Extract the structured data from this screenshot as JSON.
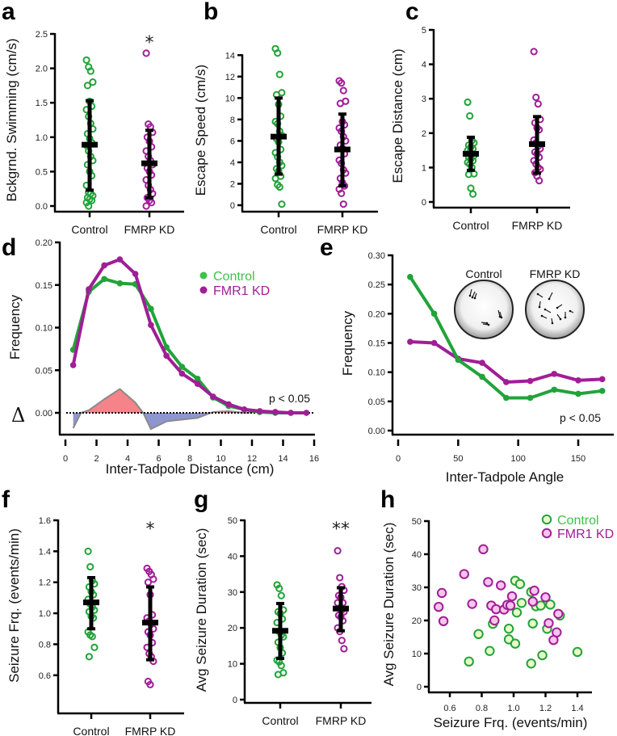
{
  "figure": {
    "colors": {
      "control": "#22a33a",
      "control_light": "#3ec24a",
      "fmrp": "#a01e96",
      "control_fill": "#eafbc8",
      "fmrp_fill": "#f6c4ec",
      "delta_pos": "#f4838a",
      "delta_neg": "#8e96cf",
      "delta_edge": "#8a8a8a"
    }
  },
  "chart_data": [
    {
      "panel": "a",
      "type": "scatter",
      "ylabel": "Bckgrnd. Swimming (cm/s)",
      "categories": [
        "Control",
        "FMRP KD"
      ],
      "yticks": [
        "0.0",
        "0.5",
        "1.0",
        "1.5",
        "2.0",
        "2.5"
      ],
      "ylim": [
        0,
        2.5
      ],
      "significance": [
        "",
        "*"
      ],
      "series": [
        {
          "name": "Control",
          "values": [
            2.12,
            2.02,
            1.96,
            1.8,
            1.75,
            1.52,
            1.45,
            1.4,
            1.3,
            1.2,
            1.12,
            1.05,
            0.98,
            0.92,
            0.88,
            0.8,
            0.72,
            0.66,
            0.6,
            0.5,
            0.44,
            0.3,
            0.2,
            0.18,
            0.15,
            0.12,
            0.1,
            0.08,
            0.05,
            0.0
          ],
          "mean": 0.89,
          "sd_low": 0.23,
          "sd_high": 1.53
        },
        {
          "name": "FMRP KD",
          "values": [
            2.22,
            1.19,
            1.15,
            1.07,
            1.0,
            0.94,
            0.86,
            0.8,
            0.72,
            0.66,
            0.6,
            0.55,
            0.5,
            0.45,
            0.38,
            0.3,
            0.24,
            0.18,
            0.12,
            0.08,
            0.05,
            0.0
          ],
          "mean": 0.62,
          "sd_low": 0.12,
          "sd_high": 1.1
        }
      ]
    },
    {
      "panel": "b",
      "type": "scatter",
      "ylabel": "Escape Speed (cm/s)",
      "categories": [
        "Control",
        "FMRP KD"
      ],
      "yticks": [
        "0",
        "2",
        "4",
        "6",
        "8",
        "10",
        "12",
        "14"
      ],
      "ylim": [
        0,
        15
      ],
      "significance": [
        "",
        ""
      ],
      "series": [
        {
          "name": "Control",
          "values": [
            14.6,
            14.2,
            12.2,
            10.5,
            10.3,
            9.4,
            8.3,
            7.8,
            7.6,
            6.9,
            6.5,
            6.2,
            5.9,
            5.2,
            4.9,
            4.5,
            4.0,
            3.7,
            3.4,
            3.2,
            2.7,
            2.5,
            1.9,
            1.7,
            0.1
          ],
          "mean": 6.4,
          "sd_low": 2.9,
          "sd_high": 10.0
        },
        {
          "name": "FMRP KD",
          "values": [
            11.6,
            11.4,
            10.7,
            9.7,
            9.5,
            7.8,
            7.5,
            7.2,
            6.9,
            6.4,
            6.0,
            5.6,
            5.3,
            4.8,
            4.2,
            3.9,
            3.3,
            3.0,
            2.5,
            2.1,
            1.8,
            1.5,
            1.1,
            0.1
          ],
          "mean": 5.2,
          "sd_low": 1.8,
          "sd_high": 8.5
        }
      ]
    },
    {
      "panel": "c",
      "type": "scatter",
      "ylabel": "Escape Distance (cm)",
      "categories": [
        "Control",
        "FMRP KD"
      ],
      "yticks": [
        "0",
        "1",
        "2",
        "3",
        "4",
        "5"
      ],
      "ylim": [
        0,
        5
      ],
      "significance": [
        "",
        ""
      ],
      "series": [
        {
          "name": "Control",
          "values": [
            2.9,
            2.5,
            1.78,
            1.72,
            1.65,
            1.6,
            1.55,
            1.5,
            1.45,
            1.4,
            1.35,
            1.3,
            1.25,
            1.2,
            1.15,
            1.1,
            1.0,
            0.82,
            0.8,
            0.4,
            0.23
          ],
          "mean": 1.4,
          "sd_low": 0.92,
          "sd_high": 1.88
        },
        {
          "name": "FMRP KD",
          "values": [
            4.37,
            3.04,
            2.85,
            2.4,
            2.3,
            2.15,
            2.1,
            1.8,
            1.72,
            1.62,
            1.55,
            1.45,
            1.4,
            1.3,
            1.2,
            1.1,
            1.0,
            0.95,
            0.85,
            0.75,
            0.62
          ],
          "mean": 1.68,
          "sd_low": 0.84,
          "sd_high": 2.48
        }
      ]
    },
    {
      "panel": "d",
      "type": "line",
      "xlabel": "Inter-Tadpole Distance (cm)",
      "ylabel": "Frequency",
      "xticks": [
        "0",
        "2",
        "4",
        "6",
        "8",
        "10",
        "12",
        "14",
        "16"
      ],
      "yticks": [
        "0.00",
        "0.05",
        "0.10",
        "0.15",
        "0.20"
      ],
      "xlim": [
        0,
        16
      ],
      "ylim": [
        -0.025,
        0.2
      ],
      "delta_label": "Δ",
      "annotation": "p < 0.05",
      "legend": [
        "Control",
        "FMR1 KD"
      ],
      "legend_position": "top-right",
      "x": [
        0.5,
        1.5,
        2.5,
        3.5,
        4.5,
        5.5,
        6.5,
        7.5,
        8.5,
        9.5,
        10.5,
        11.5,
        12.5,
        13.5,
        14.5,
        15.5
      ],
      "series": [
        {
          "name": "Control",
          "values": [
            0.074,
            0.142,
            0.157,
            0.152,
            0.151,
            0.122,
            0.077,
            0.054,
            0.04,
            0.018,
            0.008,
            0.004,
            0.001,
            0.0,
            0.0,
            0.0
          ]
        },
        {
          "name": "FMR1 KD",
          "values": [
            0.056,
            0.145,
            0.173,
            0.18,
            0.163,
            0.103,
            0.067,
            0.046,
            0.034,
            0.019,
            0.01,
            0.004,
            0.002,
            0.001,
            0.0,
            0.0
          ]
        },
        {
          "name": "Delta",
          "x": [
            0.5,
            1.0,
            1.5,
            2.5,
            3.5,
            4.5,
            5.0,
            5.5,
            6.5,
            7.5,
            8.5,
            9.5,
            10.5,
            11.5,
            12.5,
            13.5,
            14.5,
            15.5
          ],
          "values": [
            -0.018,
            0.0,
            0.003,
            0.016,
            0.028,
            0.012,
            0.0,
            -0.019,
            -0.01,
            -0.008,
            -0.006,
            0.001,
            0.002,
            0.0,
            0.001,
            0.001,
            0.0,
            0.0
          ]
        }
      ]
    },
    {
      "panel": "e",
      "type": "line",
      "xlabel": "Inter-Tadpole Angle",
      "ylabel": "Frequency",
      "xticks": [
        "0",
        "50",
        "100",
        "150"
      ],
      "yticks": [
        "0.00",
        "0.05",
        "0.10",
        "0.15",
        "0.20",
        "0.25",
        "0.30"
      ],
      "xlim": [
        0,
        180
      ],
      "ylim": [
        0,
        0.3
      ],
      "annotation": "p < 0.05",
      "inset_labels": [
        "Control",
        "FMRP KD"
      ],
      "x": [
        10,
        30,
        50,
        70,
        90,
        110,
        130,
        150,
        170
      ],
      "series": [
        {
          "name": "Control",
          "values": [
            0.263,
            0.2,
            0.121,
            0.092,
            0.056,
            0.056,
            0.07,
            0.063,
            0.068
          ]
        },
        {
          "name": "FMRP KD",
          "values": [
            0.152,
            0.15,
            0.123,
            0.116,
            0.083,
            0.085,
            0.097,
            0.086,
            0.088
          ]
        }
      ]
    },
    {
      "panel": "f",
      "type": "scatter",
      "ylabel": "Seizure Frq. (events/min)",
      "categories": [
        "Control",
        "FMRP KD"
      ],
      "yticks": [
        "0.6",
        "0.8",
        "1.0",
        "1.2",
        "1.4",
        "1.6"
      ],
      "ylim": [
        0.5,
        1.6
      ],
      "significance": [
        "",
        "*"
      ],
      "series": [
        {
          "name": "Control",
          "values": [
            1.4,
            1.3,
            1.21,
            1.19,
            1.17,
            1.14,
            1.12,
            1.09,
            1.06,
            1.04,
            1.02,
            1.01,
            0.98,
            0.97,
            0.88,
            0.86,
            0.85,
            0.78,
            0.72
          ],
          "mean": 1.07,
          "sd_low": 0.9,
          "sd_high": 1.23
        },
        {
          "name": "FMRP KD",
          "values": [
            1.29,
            1.27,
            1.25,
            1.22,
            1.2,
            1.12,
            0.99,
            0.97,
            0.95,
            0.93,
            0.9,
            0.88,
            0.86,
            0.81,
            0.78,
            0.74,
            0.72,
            0.69,
            0.56,
            0.54
          ],
          "mean": 0.94,
          "sd_low": 0.7,
          "sd_high": 1.17
        }
      ]
    },
    {
      "panel": "g",
      "type": "scatter",
      "ylabel": "Avg Seizure Duration (sec)",
      "categories": [
        "Control",
        "FMRP KD"
      ],
      "yticks": [
        "0",
        "10",
        "20",
        "30",
        "40",
        "50"
      ],
      "ylim": [
        0,
        50
      ],
      "significance": [
        "",
        "**"
      ],
      "series": [
        {
          "name": "Control",
          "values": [
            32,
            31,
            29,
            25,
            24.5,
            24,
            22.5,
            21.5,
            19,
            18,
            17.5,
            16,
            14.5,
            13,
            11,
            10.5,
            9.5,
            7.5,
            7
          ],
          "mean": 19.2,
          "sd_low": 11.5,
          "sd_high": 26.8
        },
        {
          "name": "FMRP KD",
          "values": [
            41.5,
            34,
            31.5,
            30.5,
            29,
            28.5,
            27,
            27,
            25.5,
            25,
            24.5,
            23.5,
            23,
            22,
            20,
            19,
            16.5,
            14.2
          ],
          "mean": 25.4,
          "sd_low": 19.2,
          "sd_high": 31.2
        }
      ]
    },
    {
      "panel": "h",
      "type": "scatter",
      "xlabel": "Seizure Frq. (events/min)",
      "ylabel": "Avg Seizure Duration (sec)",
      "xticks": [
        "0.6",
        "0.8",
        "1.0",
        "1.2",
        "1.4"
      ],
      "yticks": [
        "0",
        "10",
        "20",
        "30",
        "40",
        "50"
      ],
      "xlim": [
        0.5,
        1.48
      ],
      "ylim": [
        0,
        50
      ],
      "legend": [
        "Control",
        "FMR1 KD"
      ],
      "legend_position": "top-right",
      "series": [
        {
          "name": "Control",
          "points": [
            [
              0.72,
              7.6
            ],
            [
              0.78,
              15.9
            ],
            [
              0.85,
              10.8
            ],
            [
              0.87,
              19.0
            ],
            [
              0.97,
              17.5
            ],
            [
              0.97,
              14.3
            ],
            [
              1.01,
              13.0
            ],
            [
              1.02,
              22.4
            ],
            [
              1.01,
              32.0
            ],
            [
              1.04,
              31.0
            ],
            [
              1.05,
              25.3
            ],
            [
              1.11,
              28.6
            ],
            [
              1.12,
              19.1
            ],
            [
              1.14,
              24.3
            ],
            [
              1.11,
              7.0
            ],
            [
              1.17,
              24.5
            ],
            [
              1.18,
              9.5
            ],
            [
              1.21,
              17.5
            ],
            [
              1.23,
              24.8
            ],
            [
              1.29,
              21.5
            ],
            [
              1.4,
              10.5
            ]
          ]
        },
        {
          "name": "FMR1 KD",
          "points": [
            [
              0.53,
              24.1
            ],
            [
              0.55,
              28.3
            ],
            [
              0.56,
              19.8
            ],
            [
              0.69,
              34.0
            ],
            [
              0.74,
              25.0
            ],
            [
              0.81,
              41.5
            ],
            [
              0.84,
              31.6
            ],
            [
              0.86,
              24.5
            ],
            [
              0.88,
              20.0
            ],
            [
              0.89,
              23.4
            ],
            [
              0.92,
              30.6
            ],
            [
              0.94,
              23.3
            ],
            [
              0.96,
              24.7
            ],
            [
              0.98,
              24.5
            ],
            [
              0.99,
              27.3
            ],
            [
              1.12,
              25.7
            ],
            [
              1.13,
              29.0
            ],
            [
              1.2,
              27.0
            ],
            [
              1.22,
              19.2
            ],
            [
              1.25,
              14.1
            ],
            [
              1.27,
              16.4
            ],
            [
              1.28,
              22.0
            ]
          ]
        }
      ]
    }
  ]
}
